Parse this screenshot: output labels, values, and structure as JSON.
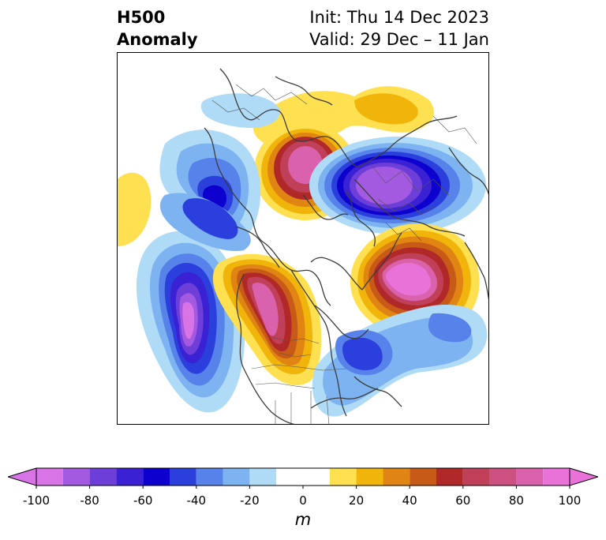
{
  "title": {
    "left_line1": "H500",
    "left_line2": "Anomaly",
    "right_line1": "Init: Thu 14 Dec 2023",
    "right_line2": "Valid: 29 Dec – 11 Jan"
  },
  "colorbar": {
    "unit": "m",
    "ticks": [
      "-100",
      "-80",
      "-60",
      "-40",
      "-20",
      "0",
      "20",
      "40",
      "60",
      "80",
      "100"
    ],
    "bins": [
      {
        "from": -100,
        "to": -90,
        "color": "#d874e6"
      },
      {
        "from": -90,
        "to": -80,
        "color": "#a359e0"
      },
      {
        "from": -80,
        "to": -70,
        "color": "#6e3fd8"
      },
      {
        "from": -70,
        "to": -60,
        "color": "#3a21d4"
      },
      {
        "from": -60,
        "to": -50,
        "color": "#0d00cf"
      },
      {
        "from": -50,
        "to": -40,
        "color": "#2b3fdd"
      },
      {
        "from": -40,
        "to": -30,
        "color": "#5682ea"
      },
      {
        "from": -30,
        "to": -20,
        "color": "#7db3f0"
      },
      {
        "from": -20,
        "to": -10,
        "color": "#b0dbf7"
      },
      {
        "from": -10,
        "to": 10,
        "color": "#ffffff"
      },
      {
        "from": 10,
        "to": 20,
        "color": "#ffe050"
      },
      {
        "from": 20,
        "to": 30,
        "color": "#f0b40a"
      },
      {
        "from": 30,
        "to": 40,
        "color": "#e08414"
      },
      {
        "from": 40,
        "to": 50,
        "color": "#c85a18"
      },
      {
        "from": 50,
        "to": 60,
        "color": "#b02828"
      },
      {
        "from": 60,
        "to": 70,
        "color": "#c0405a"
      },
      {
        "from": 70,
        "to": 80,
        "color": "#cc5080"
      },
      {
        "from": 80,
        "to": 90,
        "color": "#da62ac"
      },
      {
        "from": 90,
        "to": 100,
        "color": "#e872d8"
      }
    ],
    "extend_low_color": "#d874e6",
    "extend_high_color": "#e872d8"
  },
  "map": {
    "projection": "north polar stereographic",
    "anomaly_centers": [
      {
        "region": "East Siberia / Arctic Ocean",
        "sign": "positive",
        "peak_m": 80
      },
      {
        "region": "Scandinavia / Western Russia",
        "sign": "negative",
        "peak_m": -90
      },
      {
        "region": "North Atlantic / Greenland",
        "sign": "positive",
        "peak_m": 100
      },
      {
        "region": "Gulf of Alaska / North Pacific",
        "sign": "negative",
        "peak_m": -100
      },
      {
        "region": "Western Canada",
        "sign": "positive",
        "peak_m": 90
      },
      {
        "region": "Eastern US / Atlantic",
        "sign": "negative",
        "peak_m": -50
      },
      {
        "region": "Kamchatka",
        "sign": "negative",
        "peak_m": -60
      },
      {
        "region": "Central Asia",
        "sign": "positive",
        "peak_m": 30
      }
    ]
  }
}
